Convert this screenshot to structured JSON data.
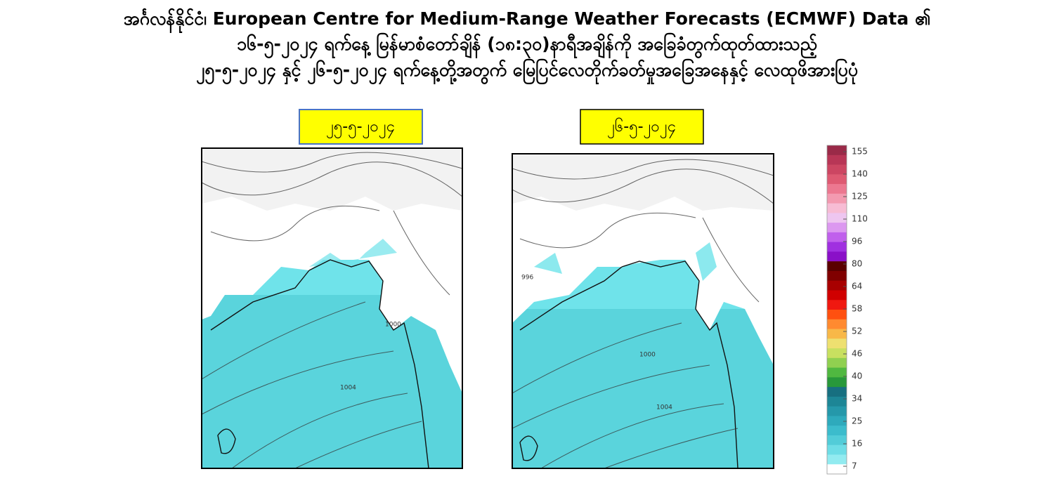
{
  "header": {
    "lines": [
      "အင်္ဂလန်နိုင်ငံ၊ European Centre for Medium-Range Weather Forecasts  (ECMWF) Data ၏",
      "၁၆-၅-၂၀၂၄ ရက်နေ့ မြန်မာစံတော်ချိန် (၁၈:၃၀)နာရီအချိန်ကို  အခြေခံတွက်ထုတ်ထားသည့်",
      "၂၅-၅-၂၀၂၄ နှင့် ၂၆-၅-၂၀၂၄ ရက်နေ့တို့အတွက် မြေပြင်လေတိုက်ခတ်မှုအခြေအနေနှင့် လေထုဖိအားပြပုံ"
    ]
  },
  "maps": [
    {
      "date": "၂၅-၅-၂၀၂၄",
      "labels": [
        "1000",
        "1004"
      ]
    },
    {
      "date": "၂၆-၅-၂၀၂၄",
      "labels": [
        "996",
        "1000",
        "1004"
      ]
    }
  ],
  "colorbar": {
    "ticks": [
      155,
      140,
      125,
      110,
      96,
      80,
      64,
      58,
      52,
      46,
      40,
      34,
      25,
      16,
      7
    ],
    "colors": [
      "#9a2a48",
      "#b83656",
      "#cc4662",
      "#de5a72",
      "#ec7890",
      "#f39ab0",
      "#f7bcd4",
      "#eec6f0",
      "#dc98f0",
      "#c060ec",
      "#a030e0",
      "#8a10c8",
      "#5a0000",
      "#800000",
      "#a80000",
      "#d00000",
      "#f01810",
      "#ff5010",
      "#ff8a30",
      "#f8b848",
      "#eee070",
      "#c8e060",
      "#90d050",
      "#50b840",
      "#28983a",
      "#176f80",
      "#1d8696",
      "#2598aa",
      "#2eaabc",
      "#3cbccc",
      "#52ccd8",
      "#6edde6",
      "#92ebf0",
      "#ffffff"
    ]
  }
}
